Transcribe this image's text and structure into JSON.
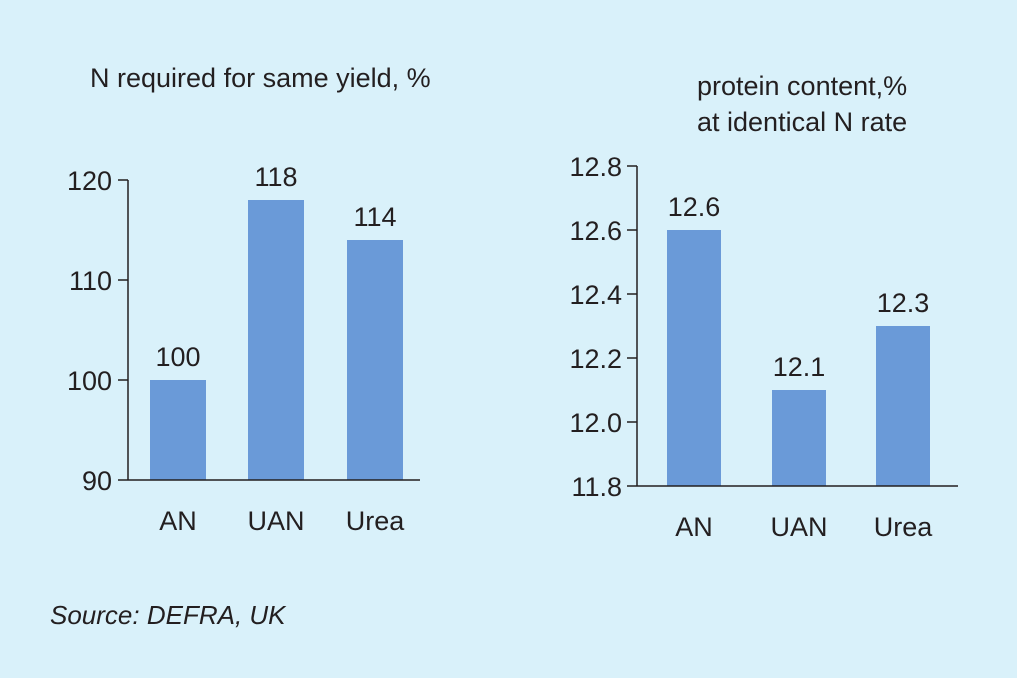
{
  "chart_data": [
    {
      "type": "bar",
      "title": "N required for same yield, %",
      "xlabel": "",
      "ylabel": "",
      "categories": [
        "AN",
        "UAN",
        "Urea"
      ],
      "values": [
        100,
        118,
        114
      ],
      "data_labels": [
        "100",
        "118",
        "114"
      ],
      "ylim": [
        90,
        120
      ],
      "yticks": [
        "90",
        "100",
        "110",
        "120"
      ],
      "bar_color": "#6a9ad8",
      "grid": false
    },
    {
      "type": "bar",
      "title": "protein content,%\nat identical N rate",
      "xlabel": "",
      "ylabel": "",
      "categories": [
        "AN",
        "UAN",
        "Urea"
      ],
      "values": [
        12.6,
        12.1,
        12.3
      ],
      "data_labels": [
        "12.6",
        "12.1",
        "12.3"
      ],
      "ylim": [
        11.8,
        12.8
      ],
      "yticks": [
        "11.8",
        "12.0",
        "12.2",
        "12.4",
        "12.6",
        "12.8"
      ],
      "bar_color": "#6a9ad8",
      "grid": false
    }
  ],
  "source": "Source: DEFRA, UK",
  "colors": {
    "background": "#d9f1fa",
    "bar": "#6a9ad8",
    "axis": "#231f20"
  }
}
